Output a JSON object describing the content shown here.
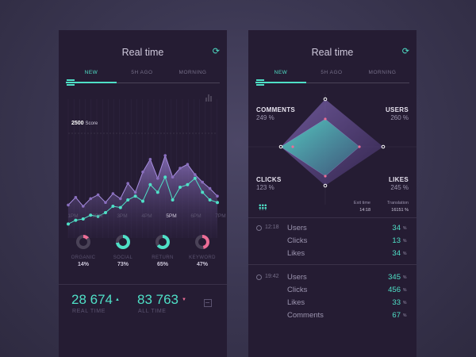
{
  "left": {
    "title": "Real time",
    "tabs": [
      "NEW",
      "5H AGO",
      "MORNING"
    ],
    "active_tab": "NEW",
    "score_value": "2500",
    "score_label": "Score",
    "chart_data": {
      "type": "area",
      "x_labels": [
        "1PM",
        "2PM",
        "3PM",
        "4PM",
        "5PM",
        "6PM",
        "7PM"
      ],
      "highlighted_x": "5PM",
      "series": [
        {
          "values": [
            11,
            14,
            15,
            18,
            17,
            20,
            25,
            24,
            30,
            33,
            29,
            42,
            36,
            48,
            30,
            40,
            42,
            47,
            36,
            30,
            28
          ]
        },
        {
          "values": [
            26,
            32,
            25,
            31,
            34,
            28,
            35,
            31,
            43,
            36,
            52,
            62,
            47,
            65,
            48,
            55,
            58,
            50,
            44,
            39,
            33
          ]
        }
      ]
    },
    "kpis": [
      {
        "label": "ORGANIC",
        "value": "14%",
        "fill": 0.14,
        "color": "#ec6d96"
      },
      {
        "label": "SOCIAL",
        "value": "73%",
        "fill": 0.73,
        "color": "#4fe0c7"
      },
      {
        "label": "RETURN",
        "value": "65%",
        "fill": 0.65,
        "color": "#4fe0c7"
      },
      {
        "label": "KEYWORD",
        "value": "47%",
        "fill": 0.47,
        "color": "#ec6d96"
      }
    ],
    "realtime_value": "28 674",
    "realtime_label": "REAL TIME",
    "alltime_value": "83 763",
    "alltime_label": "ALL TIME",
    "up_color": "#4fe0c7",
    "down_color": "#ec6d96"
  },
  "right": {
    "title": "Real time",
    "tabs": [
      "NEW",
      "5H AGO",
      "MORNING"
    ],
    "active_tab": "NEW",
    "radar": {
      "comments_label": "COMMENTS",
      "comments_value": "249 %",
      "users_label": "USERS",
      "users_value": "260 %",
      "clicks_label": "CLICKS",
      "clicks_value": "123 %",
      "likes_label": "LIKES",
      "likes_value": "245 %"
    },
    "exit_time_label": "Exit time",
    "exit_time_value": "14:18",
    "translation_label": "Translation",
    "translation_value": "16151 %",
    "groups": [
      {
        "time": "12:18",
        "rows": [
          {
            "name": "Users",
            "value": "34"
          },
          {
            "name": "Clicks",
            "value": "13"
          },
          {
            "name": "Likes",
            "value": "34"
          }
        ]
      },
      {
        "time": "19:42",
        "rows": [
          {
            "name": "Users",
            "value": "345"
          },
          {
            "name": "Clicks",
            "value": "456"
          },
          {
            "name": "Likes",
            "value": "33"
          },
          {
            "name": "Comments",
            "value": "67"
          }
        ]
      }
    ],
    "pct_unit": "%"
  },
  "colors": {
    "accent": "#4fe0c7",
    "pink": "#ec6d96",
    "bg": "#251c33"
  }
}
